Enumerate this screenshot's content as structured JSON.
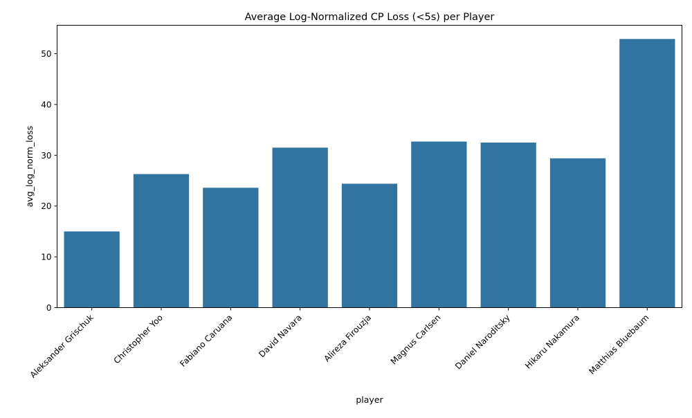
{
  "chart_data": {
    "type": "bar",
    "title": "Average Log-Normalized CP Loss (<5s) per Player",
    "xlabel": "player",
    "ylabel": "avg_log_norm_loss",
    "categories": [
      "Aleksander Grischuk",
      "Christopher Yoo",
      "Fabiano Caruana",
      "David Navara",
      "Alireza Firouzja",
      "Magnus Carlsen",
      "Daniel Naroditsky",
      "Hikaru Nakamura",
      "Matthias Bluebaum"
    ],
    "values": [
      15.0,
      26.3,
      23.6,
      31.5,
      24.4,
      32.7,
      32.5,
      29.4,
      52.9
    ],
    "ylim": [
      0,
      55.6
    ],
    "yticks": [
      0,
      10,
      20,
      30,
      40,
      50
    ],
    "bar_color": "#3274a1",
    "grid": false,
    "legend": "none"
  }
}
